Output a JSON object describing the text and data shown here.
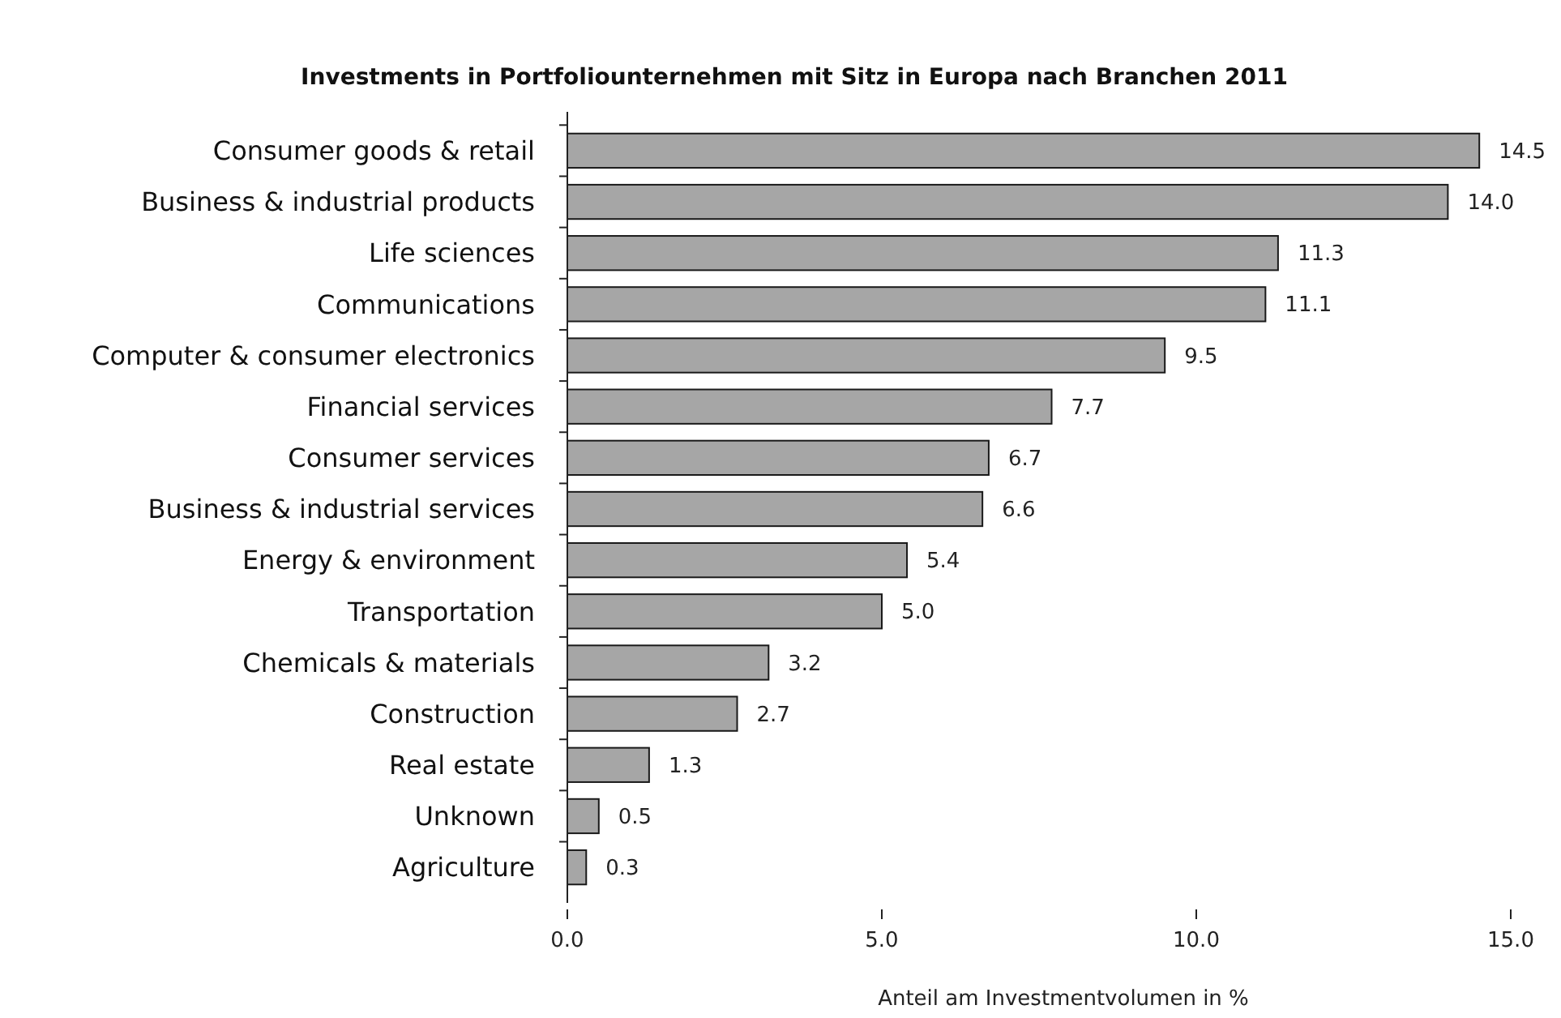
{
  "chart_data": {
    "type": "bar",
    "orientation": "horizontal",
    "title": "Investments in Portfoliounternehmen mit Sitz in Europa nach Branchen 2011",
    "xlabel": "Anteil am Investmentvolumen in %",
    "categories": [
      "Consumer goods & retail",
      "Business & industrial products",
      "Life sciences",
      "Communications",
      "Computer & consumer electronics",
      "Financial services",
      "Consumer services",
      "Business & industrial services",
      "Energy & environment",
      "Transportation",
      "Chemicals & materials",
      "Construction",
      "Real estate",
      "Unknown",
      "Agriculture"
    ],
    "values": [
      14.5,
      14.0,
      11.3,
      11.1,
      9.5,
      7.7,
      6.7,
      6.6,
      5.4,
      5.0,
      3.2,
      2.7,
      1.3,
      0.5,
      0.3
    ],
    "value_labels": [
      "14.5",
      "14.0",
      "11.3",
      "11.1",
      "9.5",
      "7.7",
      "6.7",
      "6.6",
      "5.4",
      "5.0",
      "3.2",
      "2.7",
      "1.3",
      "0.5",
      "0.3"
    ],
    "color": "#a6a6a6",
    "xlim": [
      0,
      15
    ],
    "xticks": [
      {
        "value": 0,
        "label": "0.0"
      },
      {
        "value": 5,
        "label": "5.0"
      },
      {
        "value": 10,
        "label": "10.0"
      },
      {
        "value": 15,
        "label": "15.0"
      }
    ],
    "grid": false
  }
}
